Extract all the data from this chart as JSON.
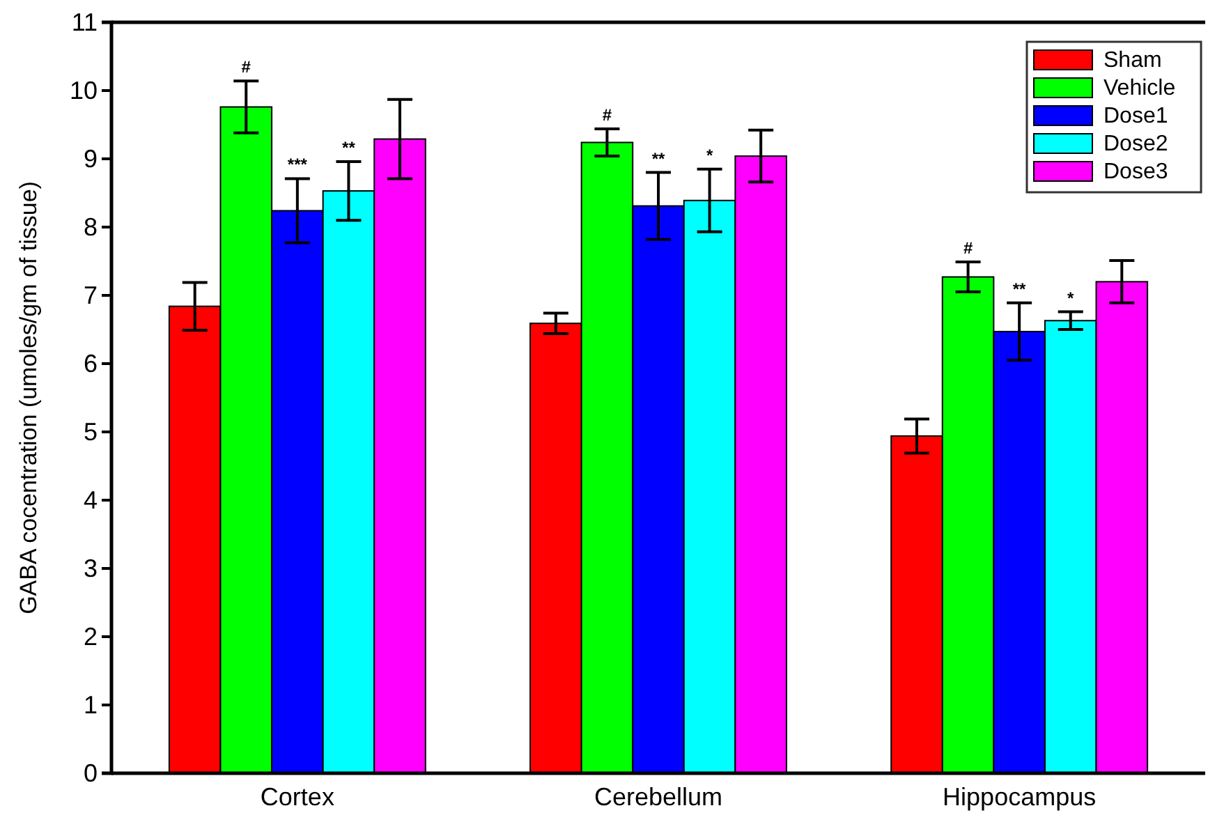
{
  "chart_data": {
    "type": "bar",
    "ylabel": "GABA cocentration (umoles/gm of tissue)",
    "categories": [
      "Cortex",
      "Cerebellum",
      "Hippocampus"
    ],
    "series": [
      {
        "name": "Sham",
        "color": "#ff0000",
        "values": [
          6.84,
          6.59,
          4.94
        ],
        "errors": [
          0.35,
          0.15,
          0.25
        ]
      },
      {
        "name": "Vehicle",
        "color": "#00ff00",
        "values": [
          9.76,
          9.24,
          7.27
        ],
        "errors": [
          0.38,
          0.2,
          0.22
        ],
        "value_labels": [
          "#",
          "#",
          "#"
        ]
      },
      {
        "name": "Dose1",
        "color": "#0000ff",
        "values": [
          8.24,
          8.31,
          6.47
        ],
        "errors": [
          0.47,
          0.49,
          0.42
        ],
        "value_labels": [
          "***",
          "**",
          "**"
        ]
      },
      {
        "name": "Dose2",
        "color": "#00ffff",
        "values": [
          8.53,
          8.39,
          6.63
        ],
        "errors": [
          0.43,
          0.46,
          0.13
        ],
        "value_labels": [
          "**",
          "*",
          "*"
        ]
      },
      {
        "name": "Dose3",
        "color": "#ff00ff",
        "values": [
          9.29,
          9.04,
          7.2
        ],
        "errors": [
          0.58,
          0.38,
          0.31
        ]
      }
    ],
    "ylim": [
      0,
      11
    ],
    "yticks": [
      0,
      1,
      2,
      3,
      4,
      5,
      6,
      7,
      8,
      9,
      10,
      11
    ],
    "grid": false,
    "legend": "top right"
  }
}
